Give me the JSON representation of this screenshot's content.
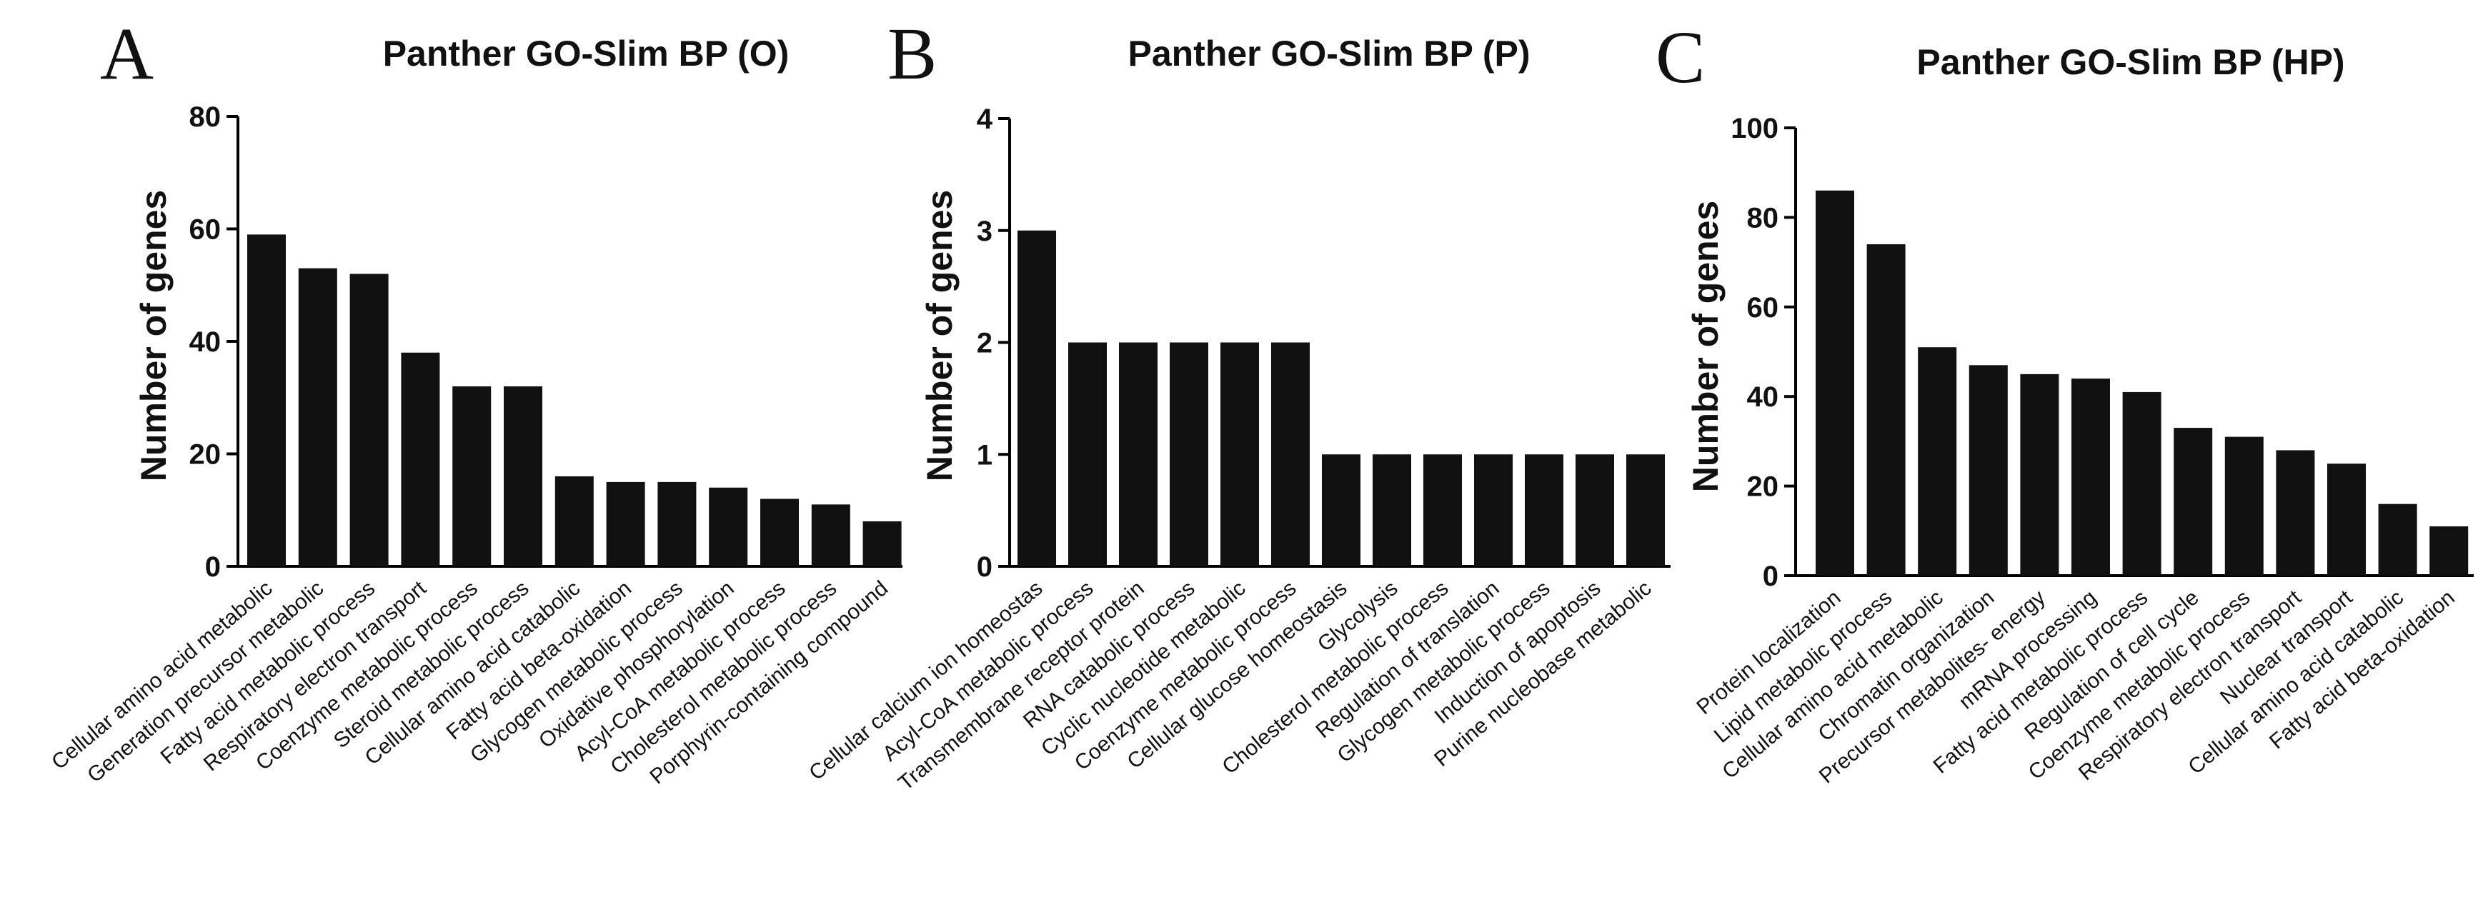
{
  "panels": [
    {
      "letter": "A"
    },
    {
      "letter": "B"
    },
    {
      "letter": "C"
    }
  ],
  "chart_data": [
    {
      "type": "bar",
      "title": "Panther GO-Slim BP (O)",
      "xlabel": "",
      "ylabel": "Number of genes",
      "ylim": [
        0,
        80
      ],
      "yticks": [
        0,
        20,
        40,
        60,
        80
      ],
      "categories": [
        "Cellular amino acid metabolic",
        "Generation precursor metabolic",
        "Fatty acid metabolic process",
        "Respiratory electron transport",
        "Coenzyme metabolic process",
        "Steroid metabolic process",
        "Cellular amino acid catabolic",
        "Fatty acid beta-oxidation",
        "Glycogen metabolic process",
        "Oxidative phosphorylation",
        "Acyl-CoA metabolic process",
        "Cholesterol metabolic process",
        "Porphyrin-containing compound"
      ],
      "values": [
        59,
        53,
        52,
        38,
        32,
        32,
        16,
        15,
        15,
        14,
        12,
        11,
        8
      ]
    },
    {
      "type": "bar",
      "title": "Panther GO-Slim BP (P)",
      "xlabel": "",
      "ylabel": "Number of genes",
      "ylim": [
        0,
        4
      ],
      "yticks": [
        0,
        1,
        2,
        3,
        4
      ],
      "categories": [
        "Cellular calcium ion homeostas",
        "Acyl-CoA metabolic process",
        "Transmembrane receptor protein",
        "RNA catabolic process",
        "Cyclic nucleotide metabolic",
        "Coenzyme metabolic process",
        "Cellular glucose homeostasis",
        "Glycolysis",
        "Cholesterol metabolic process",
        "Regulation of translation",
        "Glycogen metabolic process",
        "Induction of apoptosis",
        "Purine nucleobase metabolic"
      ],
      "values": [
        3,
        2,
        2,
        2,
        2,
        2,
        1,
        1,
        1,
        1,
        1,
        1,
        1
      ]
    },
    {
      "type": "bar",
      "title": "Panther GO-Slim BP (HP)",
      "xlabel": "",
      "ylabel": "Number of genes",
      "ylim": [
        0,
        100
      ],
      "yticks": [
        0,
        20,
        40,
        60,
        80,
        100
      ],
      "categories": [
        "Protein localization",
        "Lipid metabolic process",
        "Cellular amino acid metabolic",
        "Chromatin organization",
        "Precursor metabolites- energy",
        "mRNA processing",
        "Fatty acid metabolic process",
        "Regulation of cell cycle",
        "Coenzyme metabolic process",
        "Respiratory electron transport",
        "Nuclear transport",
        "Cellular amino acid catabolic",
        "Fatty acid beta-oxidation"
      ],
      "values": [
        86,
        74,
        51,
        47,
        45,
        44,
        41,
        33,
        31,
        28,
        25,
        16,
        11
      ]
    }
  ]
}
